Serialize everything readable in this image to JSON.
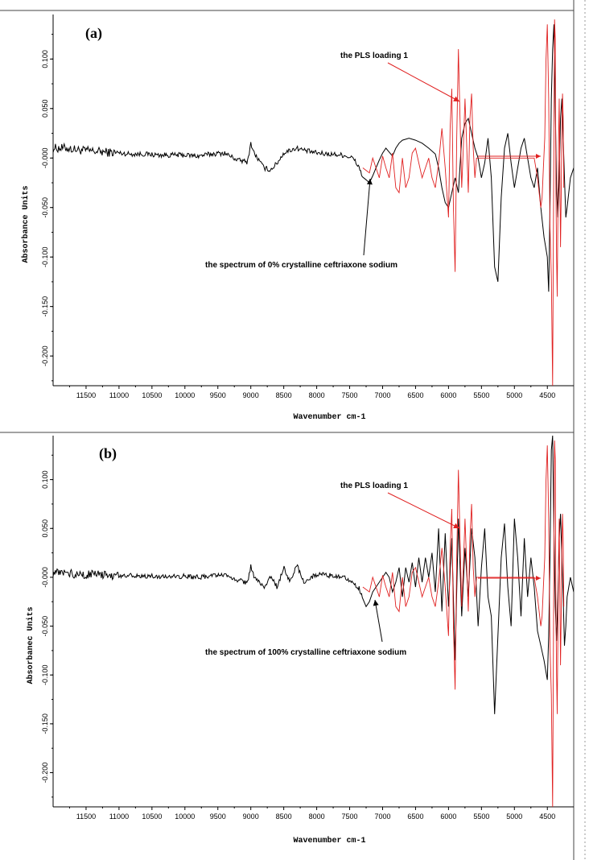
{
  "chart_data": [
    {
      "type": "line",
      "panel_label": "(a)",
      "xlabel": "Wavenumber cm-1",
      "ylabel": "Absorbance Units",
      "x_reversed": true,
      "xlim": [
        12000,
        4100
      ],
      "ylim": [
        -0.23,
        0.145
      ],
      "xticks": [
        11500,
        11000,
        10500,
        10000,
        9500,
        9000,
        8500,
        8000,
        7500,
        7000,
        6500,
        6000,
        5500,
        5000,
        4500
      ],
      "yticks": [
        0.1,
        0.05,
        0.0,
        -0.05,
        -0.1,
        -0.15,
        -0.2
      ],
      "ytick_labels": [
        "0.100",
        "0.050",
        "-0.000",
        "-0.050",
        "-0.100",
        "-0.150",
        "-0.200"
      ],
      "grid": false,
      "annotations": [
        {
          "text": "the PLS loading 1",
          "color": "#e02020"
        },
        {
          "text": "the spectrum of 0% crystalline ceftriaxone sodium",
          "color": "#000000"
        }
      ],
      "series": [
        {
          "color": "#000000",
          "noise_until": 7300,
          "x": [
            12000,
            11800,
            11600,
            11400,
            11200,
            11000,
            10800,
            10600,
            10400,
            10200,
            10000,
            9800,
            9600,
            9400,
            9200,
            9050,
            9000,
            8950,
            8800,
            8700,
            8600,
            8500,
            8400,
            8300,
            8200,
            8000,
            7800,
            7600,
            7450,
            7350,
            7300,
            7250,
            7200,
            7150,
            7100,
            7050,
            7000,
            6950,
            6900,
            6850,
            6800,
            6750,
            6700,
            6600,
            6500,
            6400,
            6300,
            6200,
            6150,
            6100,
            6050,
            6000,
            5950,
            5900,
            5850,
            5800,
            5750,
            5700,
            5650,
            5600,
            5550,
            5500,
            5450,
            5400,
            5350,
            5300,
            5250,
            5200,
            5150,
            5100,
            5050,
            5000,
            4950,
            4900,
            4850,
            4800,
            4750,
            4700,
            4650,
            4600,
            4550,
            4500,
            4480,
            4460,
            4440,
            4420,
            4400,
            4380,
            4360,
            4340,
            4320,
            4300,
            4280,
            4260,
            4240,
            4220,
            4200,
            4150,
            4100
          ],
          "y": [
            0.01,
            0.01,
            0.008,
            0.007,
            0.006,
            0.005,
            0.004,
            0.004,
            0.003,
            0.003,
            0.003,
            0.002,
            0.004,
            0.005,
            -0.002,
            -0.004,
            0.015,
            0.005,
            -0.01,
            -0.012,
            -0.005,
            0.005,
            0.008,
            0.01,
            0.008,
            0.005,
            0.004,
            0.003,
            0.0,
            -0.01,
            -0.02,
            -0.022,
            -0.025,
            -0.018,
            -0.01,
            -0.002,
            0.005,
            0.01,
            0.006,
            0.002,
            0.01,
            0.015,
            0.018,
            0.02,
            0.018,
            0.015,
            0.01,
            0.004,
            -0.01,
            -0.03,
            -0.045,
            -0.05,
            -0.035,
            -0.02,
            -0.035,
            0.02,
            0.035,
            0.04,
            0.025,
            0.01,
            0.0,
            -0.02,
            -0.005,
            0.02,
            -0.02,
            -0.11,
            -0.125,
            -0.04,
            0.01,
            0.025,
            -0.005,
            -0.03,
            -0.01,
            0.01,
            0.02,
            0.0,
            -0.02,
            -0.03,
            -0.01,
            -0.05,
            -0.08,
            -0.1,
            -0.135,
            -0.05,
            0.06,
            0.11,
            0.135,
            0.05,
            -0.03,
            -0.06,
            -0.02,
            0.04,
            0.06,
            0.02,
            -0.02,
            -0.06,
            -0.05,
            -0.02,
            -0.01
          ]
        },
        {
          "color": "#e02020",
          "x": [
            7300,
            7200,
            7150,
            7100,
            7050,
            7000,
            6950,
            6900,
            6850,
            6800,
            6750,
            6700,
            6650,
            6600,
            6550,
            6500,
            6450,
            6400,
            6350,
            6300,
            6250,
            6200,
            6150,
            6100,
            6050,
            6000,
            5975,
            5950,
            5925,
            5900,
            5875,
            5850,
            5825,
            5800,
            5775,
            5750,
            5725,
            5700,
            5675,
            5650,
            5625,
            5600,
            5575,
            5550,
            5500,
            5400,
            5300,
            5200,
            5100,
            5000,
            4900,
            4800,
            4700,
            4650,
            4600,
            4580,
            4560,
            4540,
            4520,
            4500,
            4480,
            4460,
            4440,
            4420,
            4400,
            4390,
            4380,
            4370,
            4360,
            4350,
            4340,
            4330,
            4320,
            4310,
            4300,
            4290,
            4280,
            4270,
            4260,
            4250
          ],
          "y": [
            -0.01,
            -0.015,
            0.0,
            -0.01,
            -0.02,
            0.002,
            -0.01,
            -0.02,
            0.005,
            -0.03,
            -0.035,
            0.0,
            -0.03,
            -0.02,
            0.005,
            0.01,
            -0.005,
            -0.02,
            -0.01,
            0.0,
            -0.02,
            -0.03,
            -0.005,
            0.03,
            -0.01,
            -0.06,
            0.03,
            0.07,
            -0.05,
            -0.115,
            0.02,
            0.11,
            0.04,
            -0.03,
            0.01,
            0.06,
            0.015,
            -0.035,
            0.04,
            0.065,
            0.01,
            -0.02,
            0.0,
            0.0,
            0.0,
            0.0,
            0.0,
            0.0,
            0.0,
            0.0,
            0.0,
            0.0,
            0.0,
            -0.02,
            -0.05,
            -0.04,
            -0.01,
            0.02,
            0.1,
            0.135,
            0.06,
            -0.07,
            -0.12,
            -0.23,
            0.03,
            0.14,
            0.12,
            -0.03,
            -0.1,
            -0.14,
            -0.06,
            0.02,
            0.06,
            -0.02,
            -0.09,
            -0.04,
            0.03,
            0.065,
            0.04,
            -0.03
          ]
        }
      ]
    },
    {
      "type": "line",
      "panel_label": "(b)",
      "xlabel": "Wavenumber cm-1",
      "ylabel": "Absorbanec Units",
      "x_reversed": true,
      "xlim": [
        12000,
        4100
      ],
      "ylim": [
        -0.235,
        0.145
      ],
      "xticks": [
        11500,
        11000,
        10500,
        10000,
        9500,
        9000,
        8500,
        8000,
        7500,
        7000,
        6500,
        6000,
        5500,
        5000,
        4500
      ],
      "yticks": [
        0.1,
        0.05,
        0.0,
        -0.05,
        -0.1,
        -0.15,
        -0.2
      ],
      "ytick_labels": [
        "0.100",
        "0.050",
        "-0.000",
        "-0.050",
        "-0.100",
        "-0.150",
        "-0.200"
      ],
      "grid": false,
      "annotations": [
        {
          "text": "the PLS loading 1",
          "color": "#e02020"
        },
        {
          "text": "the spectrum of 100% crystalline ceftriaxone sodium",
          "color": "#000000"
        }
      ],
      "series": [
        {
          "color": "#000000",
          "noise_until": 7300,
          "x": [
            12000,
            11800,
            11600,
            11400,
            11200,
            11000,
            10800,
            10600,
            10400,
            10200,
            10000,
            9800,
            9600,
            9400,
            9200,
            9050,
            9000,
            8950,
            8800,
            8700,
            8600,
            8500,
            8400,
            8300,
            8200,
            8000,
            7800,
            7600,
            7450,
            7350,
            7300,
            7250,
            7200,
            7150,
            7100,
            7050,
            7000,
            6950,
            6900,
            6850,
            6800,
            6750,
            6700,
            6650,
            6600,
            6550,
            6500,
            6450,
            6400,
            6350,
            6300,
            6250,
            6200,
            6150,
            6100,
            6050,
            6000,
            5950,
            5900,
            5850,
            5800,
            5750,
            5700,
            5650,
            5600,
            5550,
            5500,
            5450,
            5400,
            5350,
            5300,
            5250,
            5200,
            5150,
            5100,
            5050,
            5000,
            4950,
            4900,
            4850,
            4800,
            4750,
            4700,
            4650,
            4600,
            4550,
            4500,
            4480,
            4460,
            4440,
            4420,
            4400,
            4380,
            4360,
            4340,
            4320,
            4300,
            4280,
            4260,
            4240,
            4220,
            4200,
            4150,
            4100
          ],
          "y": [
            0.005,
            0.004,
            0.003,
            0.003,
            0.002,
            0.002,
            0.002,
            0.001,
            0.001,
            0.001,
            0.001,
            0.0,
            0.001,
            0.002,
            -0.003,
            -0.006,
            0.012,
            0.0,
            -0.01,
            0.0,
            -0.01,
            0.01,
            -0.005,
            0.012,
            -0.005,
            0.003,
            0.002,
            0.001,
            -0.005,
            -0.012,
            -0.02,
            -0.03,
            -0.025,
            -0.015,
            -0.01,
            -0.005,
            0.0,
            0.005,
            0.0,
            -0.015,
            -0.005,
            0.01,
            -0.02,
            0.01,
            -0.005,
            0.015,
            -0.01,
            0.02,
            -0.005,
            0.02,
            0.0,
            0.025,
            -0.015,
            0.05,
            -0.035,
            0.045,
            -0.03,
            0.04,
            -0.085,
            0.06,
            -0.04,
            0.03,
            -0.02,
            0.05,
            0.02,
            -0.05,
            0.01,
            0.05,
            -0.02,
            -0.04,
            -0.14,
            -0.06,
            0.02,
            0.055,
            -0.01,
            -0.05,
            0.06,
            0.02,
            -0.04,
            0.04,
            -0.02,
            0.02,
            -0.01,
            -0.055,
            -0.07,
            -0.085,
            -0.105,
            -0.06,
            0.02,
            0.13,
            0.145,
            0.05,
            -0.03,
            -0.065,
            -0.02,
            0.04,
            0.065,
            0.02,
            -0.02,
            -0.07,
            -0.05,
            -0.02,
            0.0,
            -0.015
          ]
        },
        {
          "color": "#e02020",
          "x": [
            7300,
            7200,
            7150,
            7100,
            7050,
            7000,
            6950,
            6900,
            6850,
            6800,
            6750,
            6700,
            6650,
            6600,
            6550,
            6500,
            6450,
            6400,
            6350,
            6300,
            6250,
            6200,
            6150,
            6100,
            6050,
            6000,
            5975,
            5950,
            5925,
            5900,
            5875,
            5850,
            5825,
            5800,
            5775,
            5750,
            5725,
            5700,
            5675,
            5650,
            5625,
            5600,
            5575,
            5550,
            5500,
            5400,
            5300,
            5200,
            5100,
            5000,
            4900,
            4800,
            4700,
            4650,
            4600,
            4580,
            4560,
            4540,
            4520,
            4500,
            4480,
            4460,
            4440,
            4420,
            4400,
            4390,
            4380,
            4370,
            4360,
            4350,
            4340,
            4330,
            4320,
            4310,
            4300,
            4290,
            4280,
            4270,
            4260,
            4250
          ],
          "y": [
            -0.01,
            -0.015,
            0.0,
            -0.01,
            -0.02,
            0.002,
            -0.01,
            -0.02,
            0.005,
            -0.03,
            -0.035,
            0.0,
            -0.03,
            -0.02,
            0.005,
            0.01,
            -0.005,
            -0.02,
            -0.01,
            0.0,
            -0.02,
            -0.03,
            -0.005,
            0.03,
            -0.01,
            -0.06,
            0.03,
            0.07,
            -0.05,
            -0.115,
            0.02,
            0.11,
            0.04,
            -0.03,
            0.01,
            0.06,
            0.015,
            -0.035,
            0.04,
            0.075,
            0.01,
            -0.02,
            0.0,
            0.0,
            0.0,
            0.0,
            0.0,
            0.0,
            0.0,
            0.0,
            0.0,
            0.0,
            0.0,
            -0.02,
            -0.05,
            -0.04,
            -0.01,
            0.02,
            0.1,
            0.135,
            0.06,
            -0.07,
            -0.12,
            -0.235,
            0.03,
            0.14,
            0.12,
            -0.03,
            -0.1,
            -0.14,
            -0.06,
            0.02,
            0.06,
            -0.02,
            -0.09,
            -0.04,
            0.03,
            0.065,
            0.04,
            -0.03
          ]
        }
      ]
    }
  ]
}
